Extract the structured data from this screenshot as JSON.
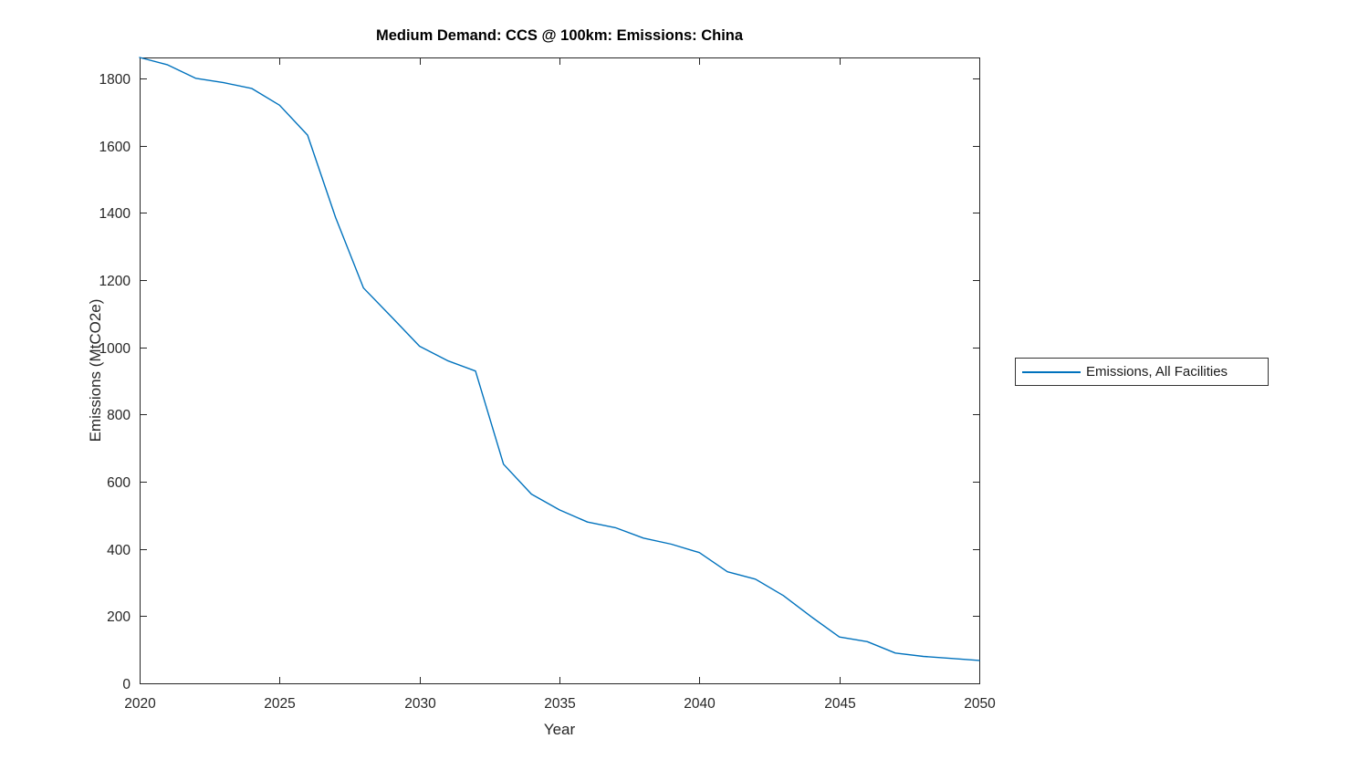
{
  "figure": {
    "background": "#ffffff",
    "axis_color": "#262626"
  },
  "chart_data": {
    "type": "line",
    "title": "Medium Demand: CCS @ 100km: Emissions: China",
    "xlabel": "Year",
    "ylabel": "Emissions (MtCO2e)",
    "xlim": [
      2020,
      2050
    ],
    "ylim": [
      0,
      1862
    ],
    "xticks": [
      2020,
      2025,
      2030,
      2035,
      2040,
      2045,
      2050
    ],
    "yticks": [
      0,
      200,
      400,
      600,
      800,
      1000,
      1200,
      1400,
      1600,
      1800
    ],
    "grid": false,
    "legend_position": "right-outside",
    "x": [
      2020,
      2021,
      2022,
      2023,
      2024,
      2025,
      2026,
      2027,
      2028,
      2029,
      2030,
      2031,
      2032,
      2033,
      2034,
      2035,
      2036,
      2037,
      2038,
      2039,
      2040,
      2041,
      2042,
      2043,
      2044,
      2045,
      2046,
      2047,
      2048,
      2049,
      2050
    ],
    "series": [
      {
        "name": "Emissions, All Facilities",
        "color": "#0072BD",
        "values": [
          1862,
          1840,
          1800,
          1787,
          1770,
          1720,
          1631,
          1386,
          1176,
          1090,
          1003,
          960,
          929,
          652,
          563,
          516,
          480,
          463,
          432,
          414,
          389,
          332,
          310,
          261,
          198,
          138,
          124,
          90,
          80,
          74,
          68
        ]
      }
    ]
  }
}
